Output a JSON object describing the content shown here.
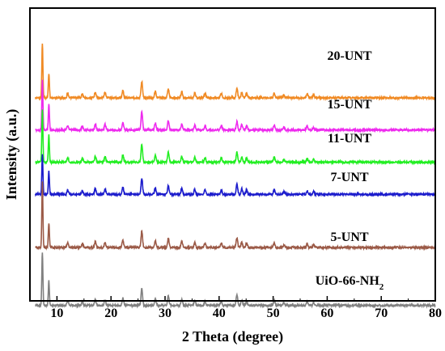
{
  "chart_data": {
    "type": "line",
    "xlabel": "2 Theta (degree)",
    "ylabel": "Intensity (a.u.)",
    "xlim": [
      5,
      80
    ],
    "xticks": [
      10,
      20,
      30,
      40,
      50,
      60,
      70,
      80
    ],
    "grid": false,
    "legend": "inline labels at right of each trace",
    "peaks_2theta": [
      7.3,
      8.5,
      12.0,
      14.7,
      17.1,
      18.9,
      22.2,
      25.7,
      28.2,
      30.6,
      33.1,
      35.5,
      37.4,
      40.4,
      43.3,
      44.2,
      45.1,
      50.2,
      52.0,
      56.3,
      57.5
    ],
    "series": [
      {
        "name": "20-UNT",
        "color": "#F08A24",
        "baseline": 0.93,
        "peak_heights": [
          1.0,
          0.45,
          0.08,
          0.07,
          0.11,
          0.1,
          0.13,
          0.3,
          0.12,
          0.16,
          0.11,
          0.09,
          0.08,
          0.08,
          0.17,
          0.1,
          0.08,
          0.09,
          0.05,
          0.07,
          0.05
        ]
      },
      {
        "name": "15-UNT",
        "color": "#EE2AEE",
        "baseline": 0.73,
        "peak_heights": [
          0.92,
          0.48,
          0.08,
          0.07,
          0.11,
          0.1,
          0.13,
          0.33,
          0.13,
          0.17,
          0.11,
          0.09,
          0.08,
          0.08,
          0.15,
          0.1,
          0.08,
          0.09,
          0.05,
          0.07,
          0.05
        ]
      },
      {
        "name": "11-UNT",
        "color": "#22EE22",
        "baseline": 0.53,
        "peak_heights": [
          0.98,
          0.5,
          0.08,
          0.07,
          0.11,
          0.1,
          0.13,
          0.33,
          0.13,
          0.18,
          0.11,
          0.09,
          0.08,
          0.08,
          0.18,
          0.1,
          0.08,
          0.09,
          0.05,
          0.07,
          0.05
        ]
      },
      {
        "name": "7-UNT",
        "color": "#1C1CCC",
        "baseline": 0.33,
        "peak_heights": [
          0.75,
          0.42,
          0.08,
          0.07,
          0.11,
          0.1,
          0.13,
          0.3,
          0.12,
          0.16,
          0.11,
          0.09,
          0.08,
          0.08,
          0.18,
          0.1,
          0.08,
          0.09,
          0.05,
          0.07,
          0.05
        ]
      },
      {
        "name": "5-UNT",
        "color": "#9B5A47",
        "baseline": 0.0,
        "peak_heights": [
          1.2,
          0.45,
          0.08,
          0.07,
          0.11,
          0.1,
          0.13,
          0.3,
          0.12,
          0.16,
          0.11,
          0.09,
          0.08,
          0.08,
          0.18,
          0.1,
          0.08,
          0.09,
          0.05,
          0.07,
          0.05
        ]
      },
      {
        "name": "UiO-66-NH2",
        "color": "#808080",
        "baseline": -0.36,
        "peak_heights": [
          0.98,
          0.45,
          0.08,
          0.07,
          0.11,
          0.1,
          0.13,
          0.31,
          0.12,
          0.18,
          0.11,
          0.09,
          0.08,
          0.08,
          0.2,
          0.1,
          0.08,
          0.09,
          0.05,
          0.08,
          0.05
        ]
      }
    ],
    "label_base": "UiO-66-NH",
    "label_sub": "2"
  }
}
